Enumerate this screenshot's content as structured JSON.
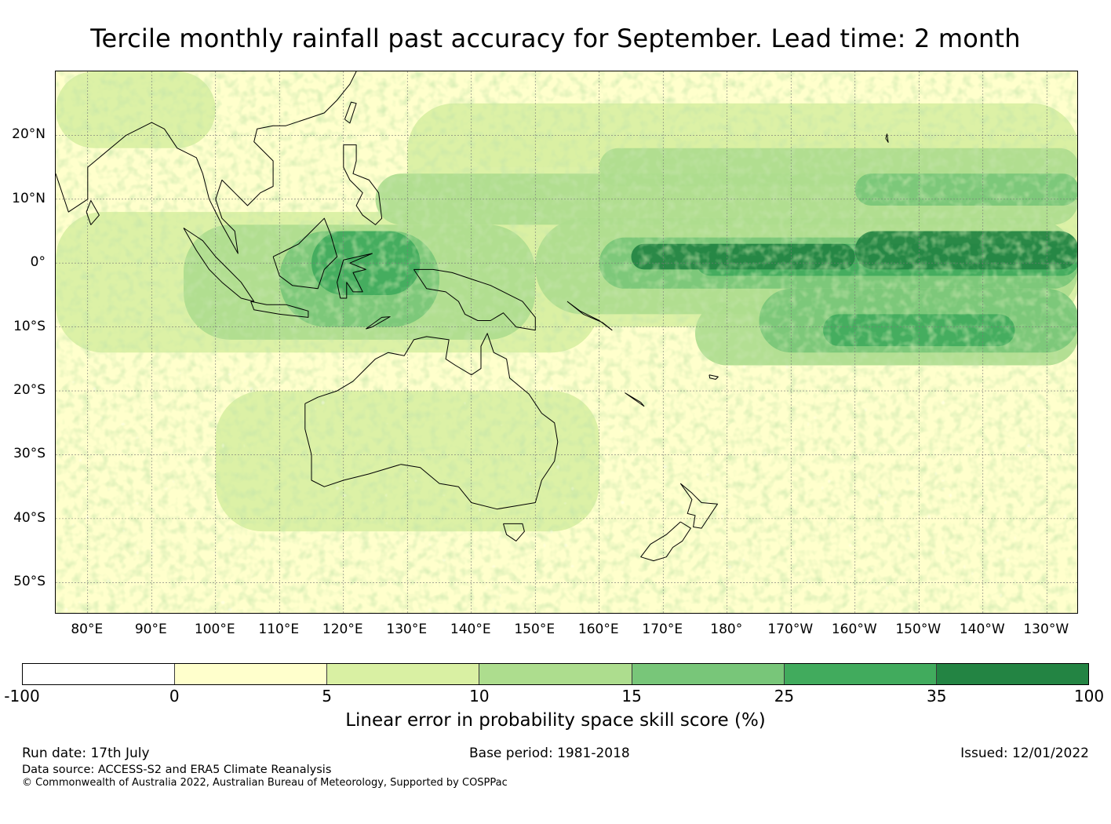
{
  "title": "Tercile monthly rainfall past accuracy for September. Lead time: 2 month",
  "map": {
    "projection": "equirectangular",
    "lon_range": [
      75,
      235
    ],
    "lat_range": [
      -55,
      30
    ],
    "lat_ticks": [
      {
        "value": 20,
        "label": "20°N"
      },
      {
        "value": 10,
        "label": "10°N"
      },
      {
        "value": 0,
        "label": "0°"
      },
      {
        "value": -10,
        "label": "10°S"
      },
      {
        "value": -20,
        "label": "20°S"
      },
      {
        "value": -30,
        "label": "30°S"
      },
      {
        "value": -40,
        "label": "40°S"
      },
      {
        "value": -50,
        "label": "50°S"
      }
    ],
    "lon_ticks": [
      {
        "value": 80,
        "label": "80°E"
      },
      {
        "value": 90,
        "label": "90°E"
      },
      {
        "value": 100,
        "label": "100°E"
      },
      {
        "value": 110,
        "label": "110°E"
      },
      {
        "value": 120,
        "label": "120°E"
      },
      {
        "value": 130,
        "label": "130°E"
      },
      {
        "value": 140,
        "label": "140°E"
      },
      {
        "value": 150,
        "label": "150°E"
      },
      {
        "value": 160,
        "label": "160°E"
      },
      {
        "value": 170,
        "label": "170°E"
      },
      {
        "value": 180,
        "label": "180°"
      },
      {
        "value": 190,
        "label": "170°W"
      },
      {
        "value": 200,
        "label": "160°W"
      },
      {
        "value": 210,
        "label": "150°W"
      },
      {
        "value": 220,
        "label": "140°W"
      },
      {
        "value": 230,
        "label": "130°W"
      }
    ],
    "gridlines": true,
    "coastlines": true
  },
  "colorbar": {
    "boundaries": [
      "-100",
      "0",
      "5",
      "10",
      "15",
      "25",
      "35",
      "100"
    ],
    "colors": [
      "#ffffff",
      "#ffffcc",
      "#d9f0a3",
      "#addd8e",
      "#78c679",
      "#41ab5d",
      "#238443"
    ],
    "label": "Linear error in probability space skill score (%)"
  },
  "footer": {
    "run_date": "Run date: 17th July",
    "base_period": "Base period: 1981-2018",
    "issued": "Issued: 12/01/2022",
    "data_source": "Data source: ACCESS-S2 and ERA5 Climate Reanalysis",
    "copyright": "© Commonwealth of Australia 2022, Australian Bureau of Meteorology, Supported by COSPPac"
  }
}
